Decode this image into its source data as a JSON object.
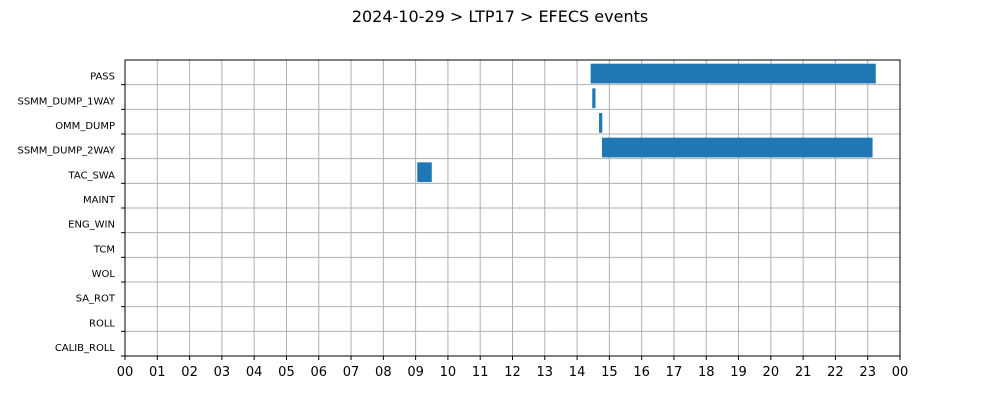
{
  "chart_data": {
    "type": "gantt",
    "title": "2024-10-29 > LTP17 > EFECS events",
    "xlabel": "",
    "ylabel": "",
    "x_unit": "hour",
    "xlim": [
      0,
      24
    ],
    "x_ticks": [
      "00",
      "01",
      "02",
      "03",
      "04",
      "05",
      "06",
      "07",
      "08",
      "09",
      "10",
      "11",
      "12",
      "13",
      "14",
      "15",
      "16",
      "17",
      "18",
      "19",
      "20",
      "21",
      "22",
      "23",
      "00"
    ],
    "categories": [
      "PASS",
      "SSMM_DUMP_1WAY",
      "OMM_DUMP",
      "SSMM_DUMP_2WAY",
      "TAC_SWA",
      "MAINT",
      "ENG_WIN",
      "TCM",
      "WOL",
      "SA_ROT",
      "ROLL",
      "CALIB_ROLL"
    ],
    "grid": true,
    "bar_color": "#1f77b4",
    "events": [
      {
        "category": "PASS",
        "start": 14.42,
        "end": 23.25
      },
      {
        "category": "SSMM_DUMP_1WAY",
        "start": 14.47,
        "end": 14.57
      },
      {
        "category": "OMM_DUMP",
        "start": 14.68,
        "end": 14.78
      },
      {
        "category": "SSMM_DUMP_2WAY",
        "start": 14.77,
        "end": 23.15
      },
      {
        "category": "TAC_SWA",
        "start": 9.05,
        "end": 9.5
      }
    ]
  }
}
